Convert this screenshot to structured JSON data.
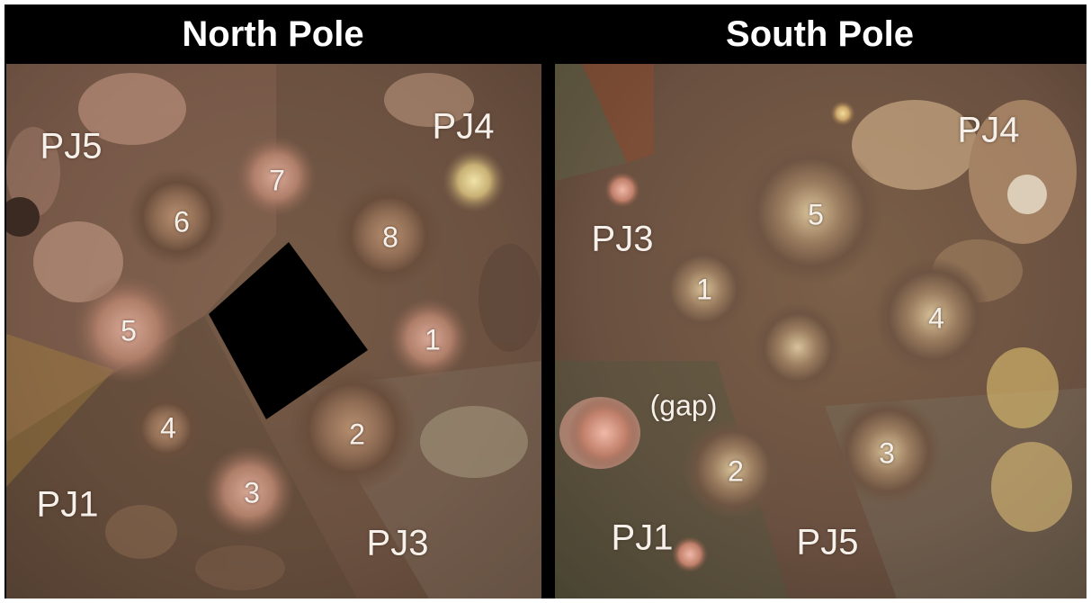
{
  "north": {
    "title": "North Pole",
    "labels": {
      "pj5": "PJ5",
      "pj4": "PJ4",
      "pj1": "PJ1",
      "pj3": "PJ3",
      "c1": "1",
      "c2": "2",
      "c3": "3",
      "c4": "4",
      "c5": "5",
      "c6": "6",
      "c7": "7",
      "c8": "8"
    }
  },
  "south": {
    "title": "South Pole",
    "labels": {
      "pj3": "PJ3",
      "pj4": "PJ4",
      "pj1": "PJ1",
      "pj5": "PJ5",
      "gap": "(gap)",
      "c1": "1",
      "c2": "2",
      "c3": "3",
      "c4": "4",
      "c5": "5"
    }
  },
  "colors": {
    "background": "#000000",
    "label": "#f6f0ea"
  }
}
